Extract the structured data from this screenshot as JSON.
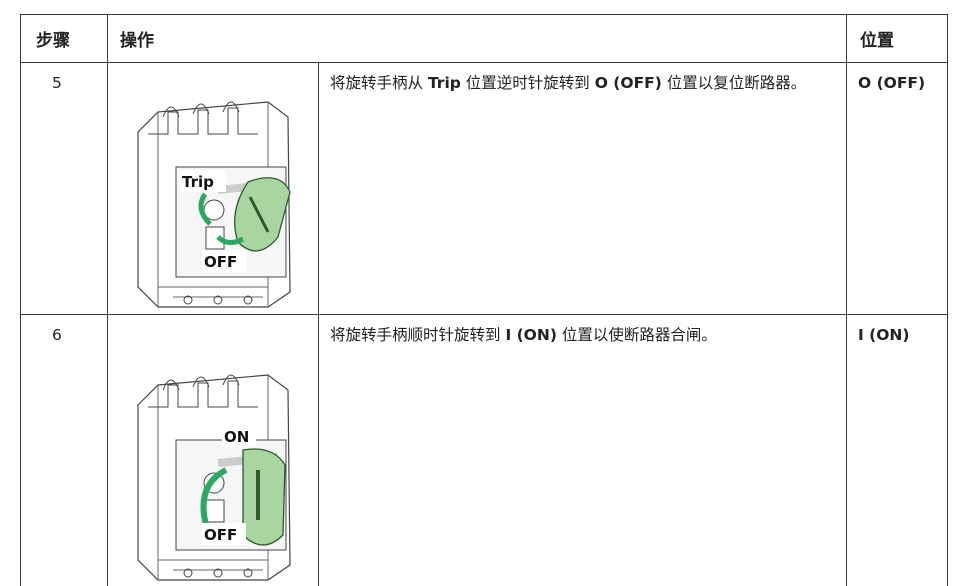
{
  "table": {
    "header": [
      "步骤",
      "操作",
      "位置"
    ],
    "rows": [
      {
        "step": "5",
        "figure_labels": [
          "Trip",
          "OFF"
        ],
        "action": [
          {
            "text": "将旋转手柄从 "
          },
          {
            "text": "Trip",
            "bold": true
          },
          {
            "text": " 位置逆时针旋转到 "
          },
          {
            "text": "O (OFF)",
            "bold": true
          },
          {
            "text": " 位置以复位断路器。"
          }
        ],
        "position": "O (OFF)"
      },
      {
        "step": "6",
        "figure_labels": [
          "ON",
          "OFF"
        ],
        "action": [
          {
            "text": "将旋转手柄顺时针旋转到 "
          },
          {
            "text": "I (ON)",
            "bold": true
          },
          {
            "text": " 位置以使断路器合闸。"
          }
        ],
        "position": "I (ON)"
      }
    ]
  }
}
